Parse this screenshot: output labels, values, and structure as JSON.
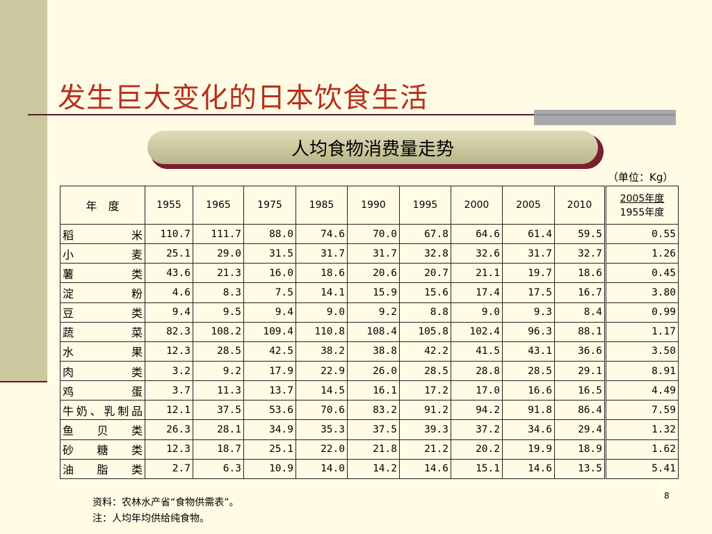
{
  "title": "发生巨大变化的日本饮食生活",
  "subtitle": "人均食物消费量走势",
  "unit": "（单位：Kg）",
  "table": {
    "header": {
      "label": "年　度",
      "years": [
        "1955",
        "1965",
        "1975",
        "1985",
        "1990",
        "1995",
        "2000",
        "2005",
        "2010"
      ],
      "ratio_top": "2005年度",
      "ratio_bottom": "1955年度"
    },
    "rows": [
      {
        "category": "稻米",
        "values": [
          "110.7",
          "111.7",
          "88.0",
          "74.6",
          "70.0",
          "67.8",
          "64.6",
          "61.4",
          "59.5"
        ],
        "ratio": "0.55"
      },
      {
        "category": "小麦",
        "values": [
          "25.1",
          "29.0",
          "31.5",
          "31.7",
          "31.7",
          "32.8",
          "32.6",
          "31.7",
          "32.7"
        ],
        "ratio": "1.26"
      },
      {
        "category": "薯类",
        "values": [
          "43.6",
          "21.3",
          "16.0",
          "18.6",
          "20.6",
          "20.7",
          "21.1",
          "19.7",
          "18.6"
        ],
        "ratio": "0.45"
      },
      {
        "category": "淀粉",
        "values": [
          "4.6",
          "8.3",
          "7.5",
          "14.1",
          "15.9",
          "15.6",
          "17.4",
          "17.5",
          "16.7"
        ],
        "ratio": "3.80"
      },
      {
        "category": "豆类",
        "values": [
          "9.4",
          "9.5",
          "9.4",
          "9.0",
          "9.2",
          "8.8",
          "9.0",
          "9.3",
          "8.4"
        ],
        "ratio": "0.99"
      },
      {
        "category": "蔬菜",
        "values": [
          "82.3",
          "108.2",
          "109.4",
          "110.8",
          "108.4",
          "105.8",
          "102.4",
          "96.3",
          "88.1"
        ],
        "ratio": "1.17"
      },
      {
        "category": "水果",
        "values": [
          "12.3",
          "28.5",
          "42.5",
          "38.2",
          "38.8",
          "42.2",
          "41.5",
          "43.1",
          "36.6"
        ],
        "ratio": "3.50"
      },
      {
        "category": "肉类",
        "values": [
          "3.2",
          "9.2",
          "17.9",
          "22.9",
          "26.0",
          "28.5",
          "28.8",
          "28.5",
          "29.1"
        ],
        "ratio": "8.91"
      },
      {
        "category": "鸡蛋",
        "values": [
          "3.7",
          "11.3",
          "13.7",
          "14.5",
          "16.1",
          "17.2",
          "17.0",
          "16.6",
          "16.5"
        ],
        "ratio": "4.49"
      },
      {
        "category": "牛奶、乳制品",
        "values": [
          "12.1",
          "37.5",
          "53.6",
          "70.6",
          "83.2",
          "91.2",
          "94.2",
          "91.8",
          "86.4"
        ],
        "ratio": "7.59"
      },
      {
        "category": "鱼贝类",
        "values": [
          "26.3",
          "28.1",
          "34.9",
          "35.3",
          "37.5",
          "39.3",
          "37.2",
          "34.6",
          "29.4"
        ],
        "ratio": "1.32"
      },
      {
        "category": "砂糖类",
        "values": [
          "12.3",
          "18.7",
          "25.1",
          "22.0",
          "21.8",
          "21.2",
          "20.2",
          "19.9",
          "18.9"
        ],
        "ratio": "1.62"
      },
      {
        "category": "油脂类",
        "values": [
          "2.7",
          "6.3",
          "10.9",
          "14.0",
          "14.2",
          "14.6",
          "15.1",
          "14.6",
          "13.5"
        ],
        "ratio": "5.41"
      }
    ]
  },
  "source_note": "资料：农林水产省“食物供需表”。",
  "footnote": "注：人均年均供给纯食物。",
  "page_number": "8",
  "colors": {
    "title": "#b5301c",
    "left_bar": "#cbc79f",
    "background": "#fffbe5",
    "rule": "#5a1a28"
  }
}
